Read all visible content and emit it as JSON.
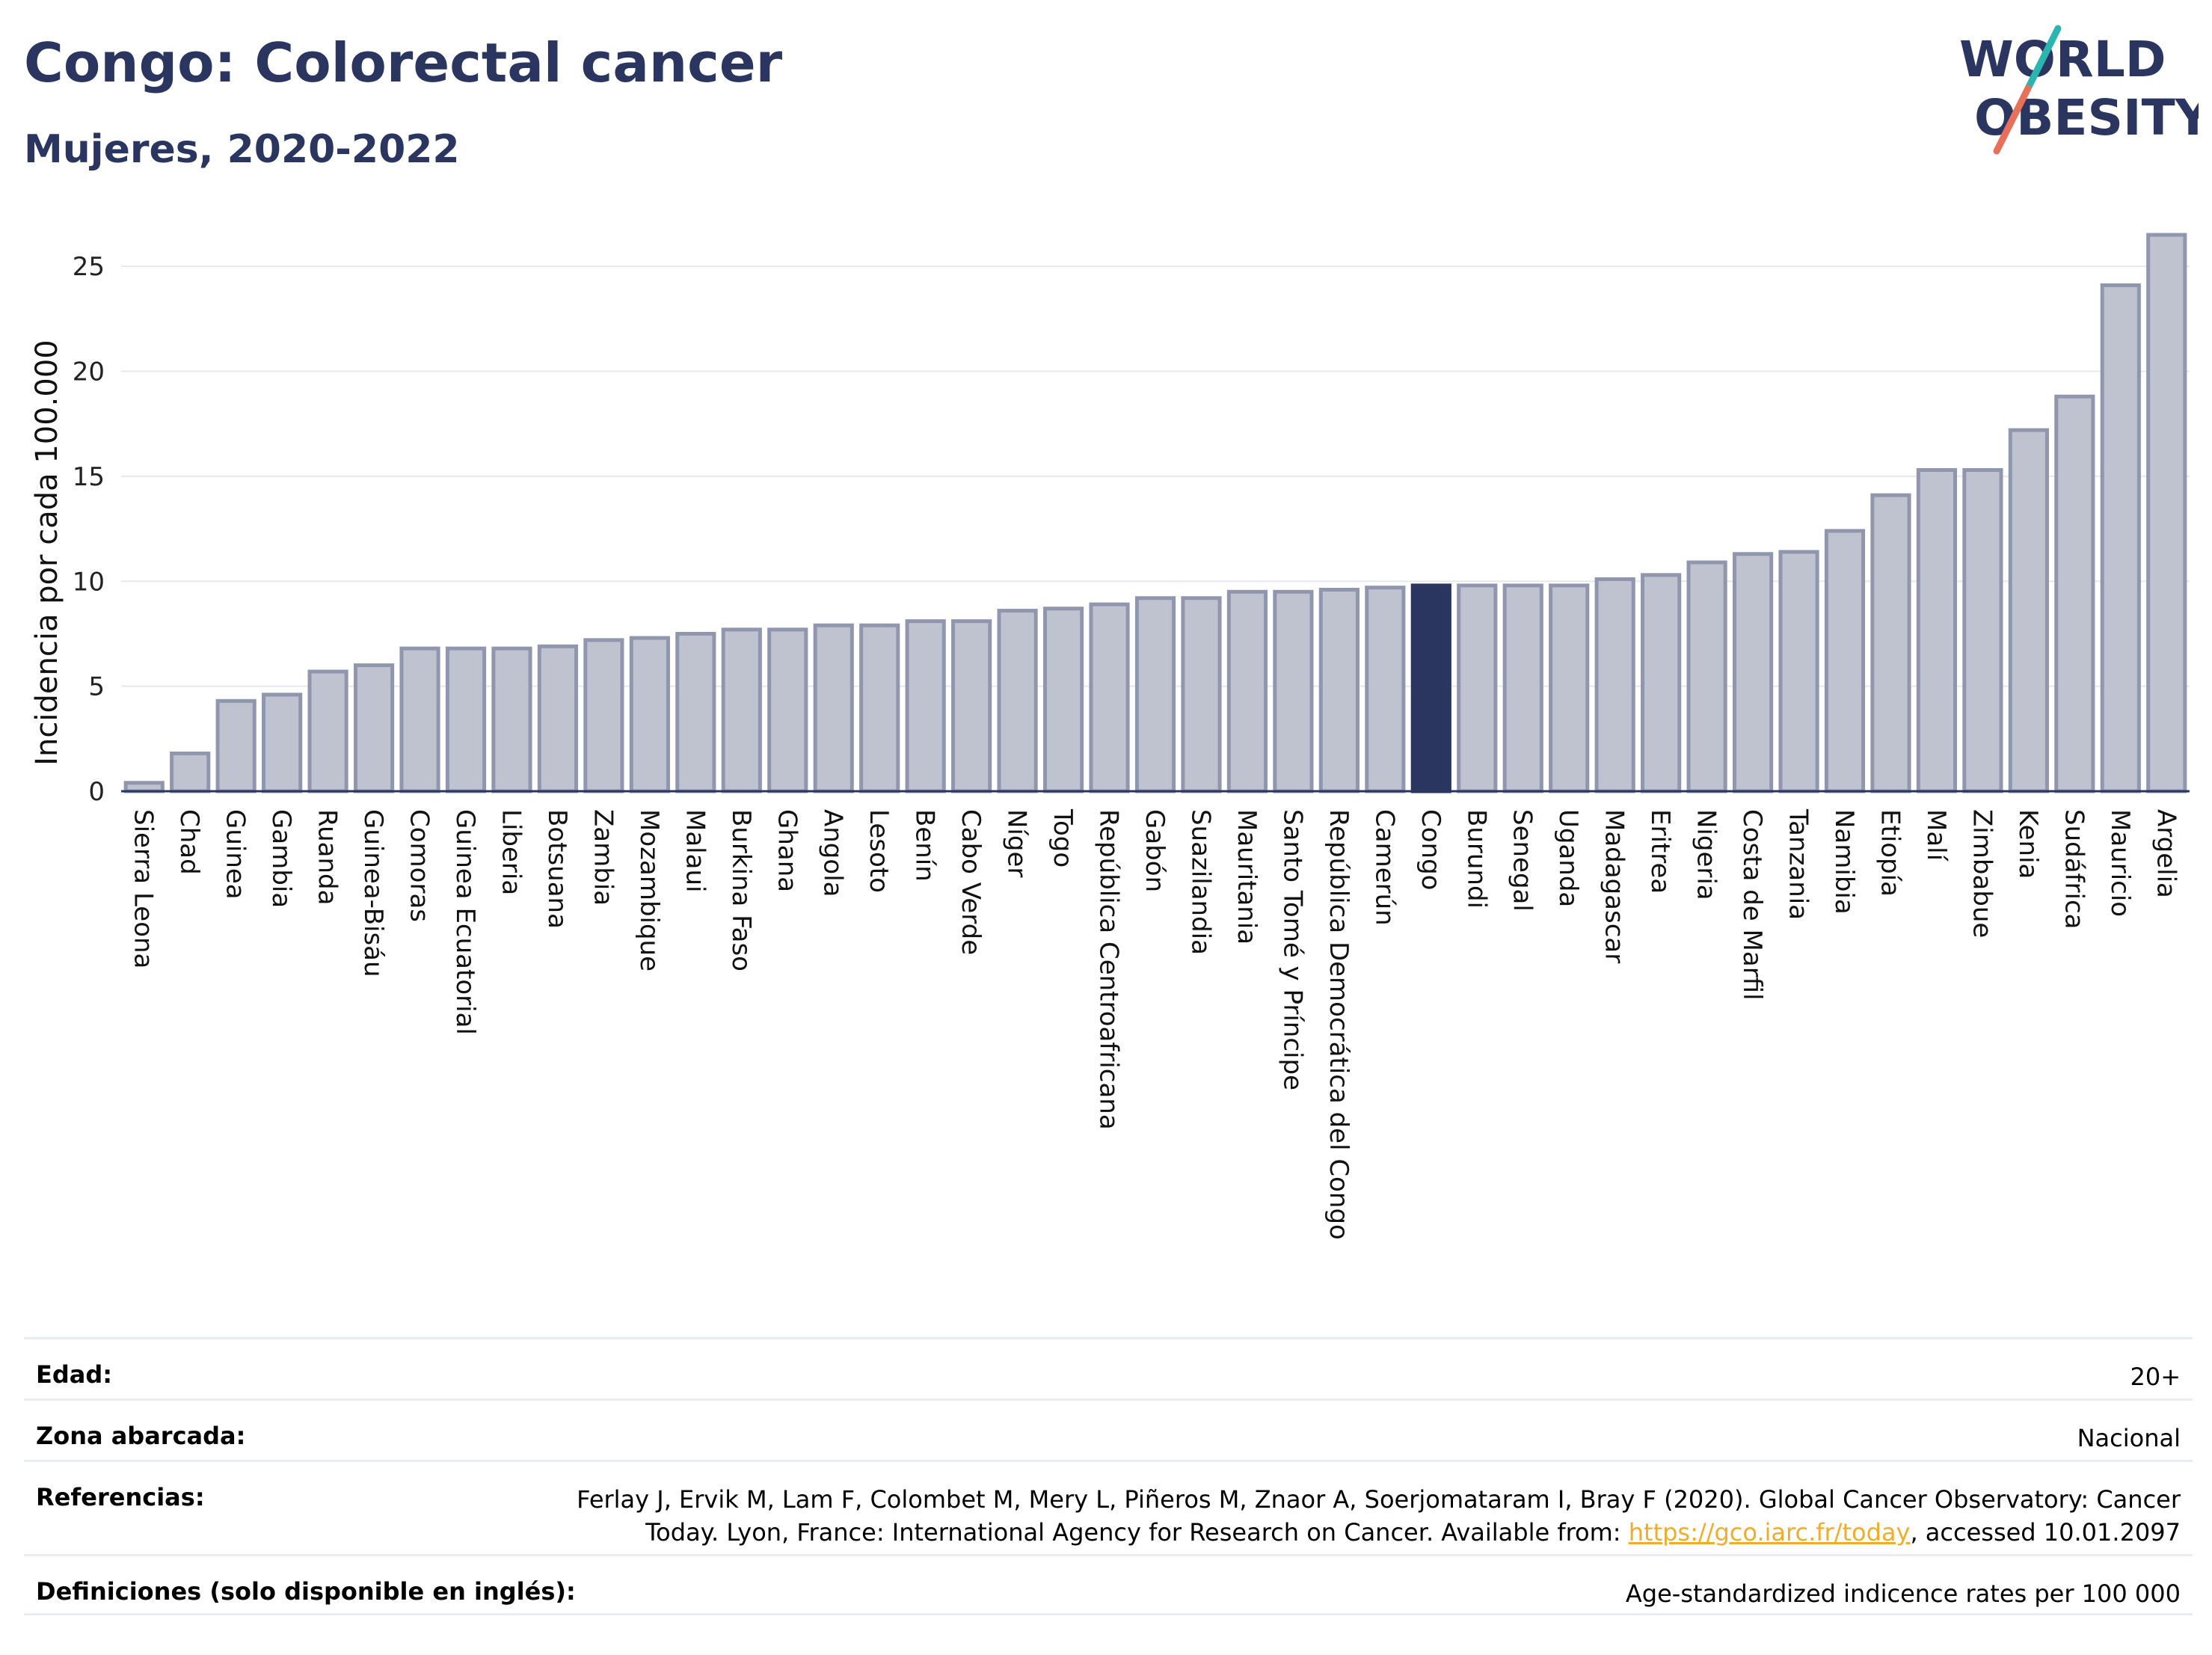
{
  "header": {
    "title": "Congo: Colorectal cancer",
    "subtitle": "Mujeres, 2020-2022"
  },
  "logo": {
    "line1": "WORLD",
    "line2": "OBESITY",
    "accent_colors": [
      "#2bb5b0",
      "#e8705a"
    ]
  },
  "chart_data": {
    "type": "bar",
    "ylabel": "Incidencia por cada 100.000",
    "ylim": [
      0,
      27
    ],
    "yticks": [
      0,
      5,
      10,
      15,
      20,
      25
    ],
    "grid": true,
    "highlight": "Congo",
    "colors": {
      "bar": "#bfc3cf",
      "bar_border": "#9096ae",
      "highlight": "#2b3660"
    },
    "categories": [
      "Sierra Leona",
      "Chad",
      "Guinea",
      "Gambia",
      "Ruanda",
      "Guinea-Bisáu",
      "Comoras",
      "Guinea Ecuatorial",
      "Liberia",
      "Botsuana",
      "Zambia",
      "Mozambique",
      "Malaui",
      "Burkina Faso",
      "Ghana",
      "Angola",
      "Lesoto",
      "Benín",
      "Cabo Verde",
      "Níger",
      "Togo",
      "República Centroafricana",
      "Gabón",
      "Suazilandia",
      "Mauritania",
      "Santo Tomé y Príncipe",
      "República Democrática del Congo",
      "Camerún",
      "Congo",
      "Burundi",
      "Senegal",
      "Uganda",
      "Madagascar",
      "Eritrea",
      "Nigeria",
      "Costa de Marfil",
      "Tanzania",
      "Namibia",
      "Etiopía",
      "Malí",
      "Zimbabue",
      "Kenia",
      "Sudáfrica",
      "Mauricio",
      "Argelia"
    ],
    "values": [
      0.4,
      1.8,
      4.3,
      4.6,
      5.7,
      6.0,
      6.8,
      6.8,
      6.8,
      6.9,
      7.2,
      7.3,
      7.5,
      7.7,
      7.7,
      7.9,
      7.9,
      8.1,
      8.1,
      8.6,
      8.7,
      8.9,
      9.2,
      9.2,
      9.5,
      9.5,
      9.6,
      9.7,
      9.8,
      9.8,
      9.8,
      9.8,
      10.1,
      10.3,
      10.9,
      11.3,
      11.4,
      12.4,
      14.1,
      15.3,
      15.3,
      17.2,
      18.8,
      24.1,
      26.5
    ]
  },
  "info_table": [
    {
      "label": "Edad:",
      "value": "20+"
    },
    {
      "label": "Zona abarcada:",
      "value": "Nacional"
    },
    {
      "label": "Referencias:",
      "value_line1": "Ferlay J, Ervik M, Lam F, Colombet M, Mery L, Piñeros M, Znaor A, Soerjomataram I, Bray F (2020). Global Cancer Observatory: Cancer",
      "value_pre_link": "Today. Lyon, France: International Agency for Research on Cancer. Available from: ",
      "link_text": "https://gco.iarc.fr/today",
      "value_post_link": ", accessed 10.01.2097"
    },
    {
      "label": "Definiciones (solo disponible en inglés):",
      "value": "Age-standardized indicence rates per 100 000"
    }
  ]
}
